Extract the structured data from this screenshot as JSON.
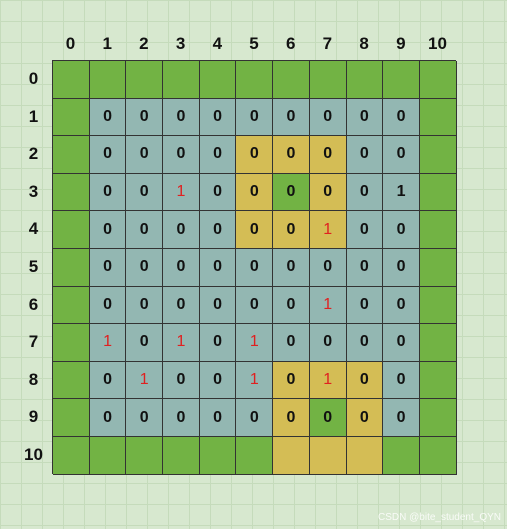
{
  "column_labels": [
    "0",
    "1",
    "2",
    "3",
    "4",
    "5",
    "6",
    "7",
    "8",
    "9",
    "10"
  ],
  "row_labels": [
    "0",
    "1",
    "2",
    "3",
    "4",
    "5",
    "6",
    "7",
    "8",
    "9",
    "10"
  ],
  "colors": {
    "G": "#72b344",
    "B": "#93b7b2",
    "Y": "#d4bd55",
    "highlight_text": "#e02020"
  },
  "cell_colors": [
    "GGGGGGGGGGG",
    "GBBBBBBBBBG",
    "GBBBBYYYBBG",
    "GBBBBYGYBBG",
    "GBBBBYYYBBG",
    "GBBBBBBBBBG",
    "GBBBBBBBBBG",
    "GBBBBBBBBBG",
    "GBBBBBYYYBG",
    "GBBBBBYGYBG",
    "GGGGGGYYYGG"
  ],
  "cell_values": [
    [
      "",
      "",
      "",
      "",
      "",
      "",
      "",
      "",
      "",
      "",
      ""
    ],
    [
      "",
      "0",
      "0",
      "0",
      "0",
      "0",
      "0",
      "0",
      "0",
      "0",
      ""
    ],
    [
      "",
      "0",
      "0",
      "0",
      "0",
      "0",
      "0",
      "0",
      "0",
      "0",
      ""
    ],
    [
      "",
      "0",
      "0",
      "1",
      "0",
      "0",
      "0",
      "0",
      "0",
      "1",
      ""
    ],
    [
      "",
      "0",
      "0",
      "0",
      "0",
      "0",
      "0",
      "1",
      "0",
      "0",
      ""
    ],
    [
      "",
      "0",
      "0",
      "0",
      "0",
      "0",
      "0",
      "0",
      "0",
      "0",
      ""
    ],
    [
      "",
      "0",
      "0",
      "0",
      "0",
      "0",
      "0",
      "1",
      "0",
      "0",
      ""
    ],
    [
      "",
      "1",
      "0",
      "1",
      "0",
      "1",
      "0",
      "0",
      "0",
      "0",
      ""
    ],
    [
      "",
      "0",
      "1",
      "0",
      "0",
      "1",
      "0",
      "1",
      "0",
      "0",
      ""
    ],
    [
      "",
      "0",
      "0",
      "0",
      "0",
      "0",
      "0",
      "0",
      "0",
      "0",
      ""
    ],
    [
      "",
      "",
      "",
      "",
      "",
      "",
      "",
      "",
      "",
      "",
      ""
    ]
  ],
  "red_cells": [
    [
      3,
      3
    ],
    [
      4,
      7
    ],
    [
      6,
      7
    ],
    [
      7,
      1
    ],
    [
      7,
      3
    ],
    [
      7,
      5
    ],
    [
      8,
      2
    ],
    [
      8,
      5
    ],
    [
      8,
      7
    ]
  ],
  "watermark": "CSDN @bite_student_QYN"
}
